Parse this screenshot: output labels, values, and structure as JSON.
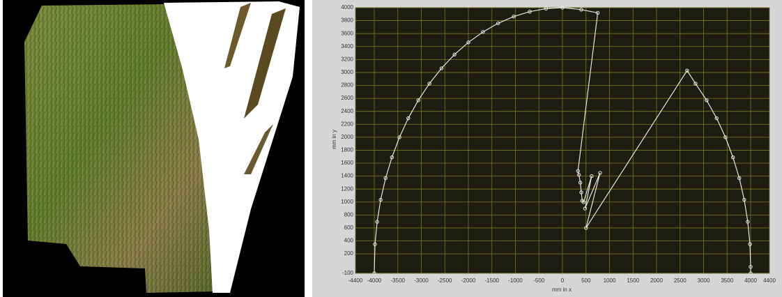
{
  "chart_data": {
    "type": "line",
    "xlabel": "mm in x",
    "ylabel": "mm in y",
    "x": [
      -4000,
      -3985,
      -3939,
      -3864,
      -3759,
      -3625,
      -3464,
      -3277,
      -3064,
      -2828,
      -2571,
      -2294,
      -2000,
      -1690,
      -1368,
      -1035,
      -695,
      -349,
      0,
      400,
      750,
      330,
      350,
      380,
      400,
      420,
      450,
      620,
      480,
      800,
      500,
      2650,
      2828,
      3064,
      3277,
      3464,
      3625,
      3759,
      3864,
      3939,
      3985,
      4000,
      4000
    ],
    "y": [
      -100,
      349,
      695,
      1035,
      1368,
      1690,
      2000,
      2294,
      2571,
      2828,
      3064,
      3277,
      3464,
      3625,
      3759,
      3864,
      3939,
      3985,
      4000,
      3970,
      3920,
      1480,
      1420,
      1300,
      1150,
      1020,
      1000,
      1400,
      900,
      1450,
      600,
      3030,
      2828,
      2571,
      2294,
      2000,
      1690,
      1368,
      1035,
      695,
      349,
      0,
      -100
    ],
    "color": "#e6e6e0",
    "markers": true,
    "xlim": [
      -4400,
      4400
    ],
    "xticks": [
      -4400,
      -4000,
      -3500,
      -3000,
      -2500,
      -2000,
      -1500,
      -1000,
      -500,
      0,
      500,
      1000,
      1500,
      2000,
      2500,
      3000,
      3500,
      4000,
      4400
    ],
    "ylim": [
      -100,
      4000
    ],
    "yticks": [
      -100,
      200,
      400,
      600,
      800,
      1000,
      1200,
      1400,
      1600,
      1800,
      2000,
      2200,
      2400,
      2600,
      2800,
      3000,
      3200,
      3400,
      3600,
      3800,
      4000
    ],
    "grid": true,
    "grid_color": "#7a7a1e",
    "plot_background": "#1c1c10"
  }
}
